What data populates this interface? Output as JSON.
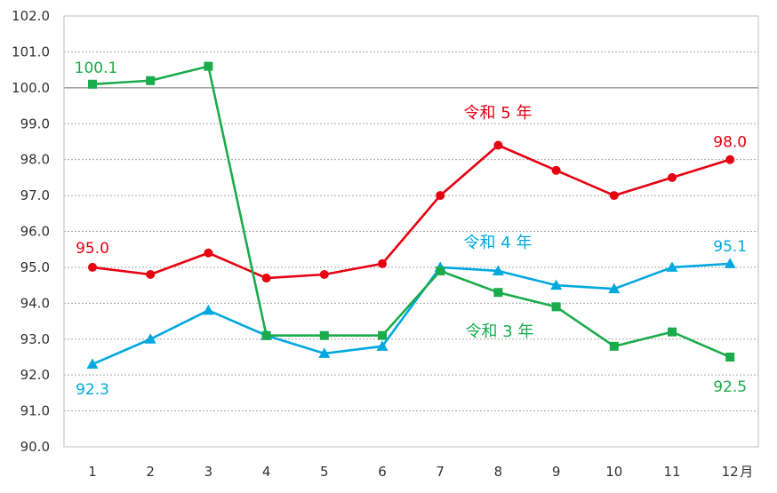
{
  "chart_data": {
    "type": "line",
    "x_unit": "月",
    "categories": [
      "1",
      "2",
      "3",
      "4",
      "5",
      "6",
      "7",
      "8",
      "9",
      "10",
      "11",
      "12"
    ],
    "ylim": [
      90.0,
      102.0
    ],
    "ytick_step": 1.0,
    "yticks": [
      "90.0",
      "91.0",
      "92.0",
      "93.0",
      "94.0",
      "95.0",
      "96.0",
      "97.0",
      "98.0",
      "99.0",
      "100.0",
      "101.0",
      "102.0"
    ],
    "reference_line": 100.0,
    "grid": true,
    "series": [
      {
        "name": "令和 5 年",
        "color": "#e60012",
        "marker": "circle",
        "values": [
          95.0,
          94.8,
          95.4,
          94.7,
          94.8,
          95.1,
          97.0,
          98.4,
          97.7,
          97.0,
          97.5,
          98.0
        ],
        "data_labels": [
          {
            "index": 0,
            "text": "95.0"
          },
          {
            "index": 11,
            "text": "98.0"
          }
        ]
      },
      {
        "name": "令和 4 年",
        "color": "#00a8e0",
        "marker": "triangle",
        "values": [
          92.3,
          93.0,
          93.8,
          93.1,
          92.6,
          92.8,
          95.0,
          94.9,
          94.5,
          94.4,
          95.0,
          95.1
        ],
        "data_labels": [
          {
            "index": 0,
            "text": "92.3"
          },
          {
            "index": 11,
            "text": "95.1"
          }
        ]
      },
      {
        "name": "令和 3 年",
        "color": "#1aab4b",
        "marker": "square",
        "values": [
          100.1,
          100.2,
          100.6,
          93.1,
          93.1,
          93.1,
          94.9,
          94.3,
          93.9,
          92.8,
          93.2,
          92.5
        ],
        "data_labels": [
          {
            "index": 0,
            "text": "100.1"
          },
          {
            "index": 11,
            "text": "92.5"
          }
        ]
      }
    ]
  }
}
